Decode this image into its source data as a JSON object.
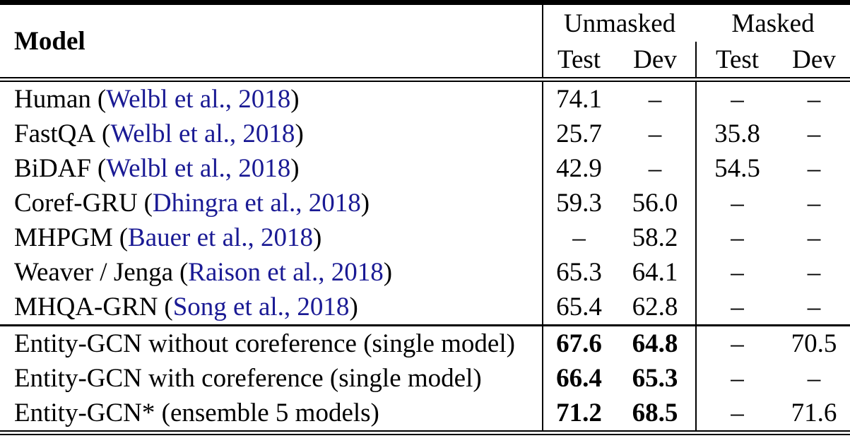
{
  "colors": {
    "citation_link": "#1a1a94",
    "text": "#000000",
    "background": "#ffffff"
  },
  "header": {
    "model": "Model",
    "groups": [
      {
        "label": "Unmasked"
      },
      {
        "label": "Masked"
      }
    ],
    "subcols": [
      "Test",
      "Dev",
      "Test",
      "Dev"
    ]
  },
  "punct": {
    "open": "(",
    "close": ")"
  },
  "rows": [
    {
      "name": "Human",
      "cite": "Welbl et al., 2018",
      "cells": [
        "74.1",
        "–",
        "–",
        "–"
      ]
    },
    {
      "name": "FastQA",
      "cite": "Welbl et al., 2018",
      "cells": [
        "25.7",
        "–",
        "35.8",
        "–"
      ]
    },
    {
      "name": "BiDAF",
      "cite": "Welbl et al., 2018",
      "cells": [
        "42.9",
        "–",
        "54.5",
        "–"
      ]
    },
    {
      "name": "Coref-GRU",
      "cite": "Dhingra et al., 2018",
      "cells": [
        "59.3",
        "56.0",
        "–",
        "–"
      ]
    },
    {
      "name": "MHPGM",
      "cite": "Bauer et al., 2018",
      "cells": [
        "–",
        "58.2",
        "–",
        "–"
      ]
    },
    {
      "name": "Weaver / Jenga",
      "cite": "Raison et al., 2018",
      "cells": [
        "65.3",
        "64.1",
        "–",
        "–"
      ]
    },
    {
      "name": "MHQA-GRN",
      "cite": "Song et al., 2018",
      "cells": [
        "65.4",
        "62.8",
        "–",
        "–"
      ]
    }
  ],
  "entity_rows": [
    {
      "name": "Entity-GCN without coreference (single model)",
      "cells": [
        "67.6",
        "64.8",
        "–",
        "70.5"
      ]
    },
    {
      "name": "Entity-GCN with coreference (single model)",
      "cells": [
        "66.4",
        "65.3",
        "–",
        "–"
      ]
    },
    {
      "name": "Entity-GCN* (ensemble 5 models)",
      "cells": [
        "71.2",
        "68.5",
        "–",
        "71.6"
      ]
    }
  ]
}
